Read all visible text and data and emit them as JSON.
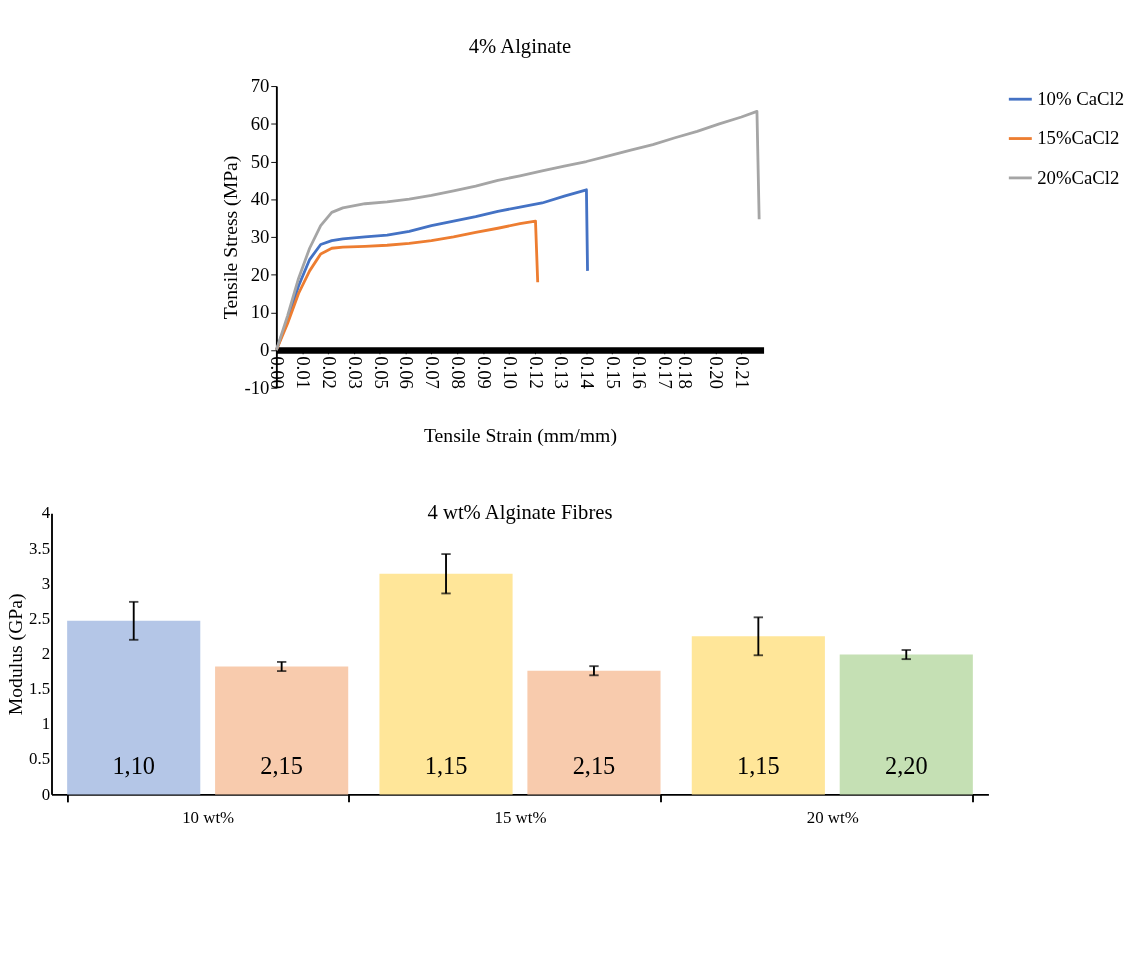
{
  "chart_data": [
    {
      "type": "line",
      "title": "4% Alginate",
      "xlabel": "Tensile Strain (mm/mm)",
      "ylabel": "Tensile Stress (MPa)",
      "legend": "right",
      "grid": false,
      "line_style": "solid",
      "marker": "none",
      "xlim": [
        0,
        0.22
      ],
      "ylim": [
        -10,
        70
      ],
      "yticks": [
        -10,
        0,
        10,
        20,
        30,
        40,
        50,
        60,
        70
      ],
      "xticks": [
        {
          "value": 0,
          "label": "0.00"
        },
        {
          "value": 0.01167,
          "label": "0.01"
        },
        {
          "value": 0.02333,
          "label": "0.02"
        },
        {
          "value": 0.035,
          "label": "0.03"
        },
        {
          "value": 0.04667,
          "label": "0.05"
        },
        {
          "value": 0.05833,
          "label": "0.06"
        },
        {
          "value": 0.07,
          "label": "0.07"
        },
        {
          "value": 0.08167,
          "label": "0.08"
        },
        {
          "value": 0.09333,
          "label": "0.09"
        },
        {
          "value": 0.105,
          "label": "0.10"
        },
        {
          "value": 0.11667,
          "label": "0.12"
        },
        {
          "value": 0.12833,
          "label": "0.13"
        },
        {
          "value": 0.14,
          "label": "0.14"
        },
        {
          "value": 0.15167,
          "label": "0.15"
        },
        {
          "value": 0.16333,
          "label": "0.16"
        },
        {
          "value": 0.175,
          "label": "0.17"
        },
        {
          "value": 0.184,
          "label": "0.18"
        },
        {
          "value": 0.19833,
          "label": "0.20"
        },
        {
          "value": 0.21,
          "label": "0.21"
        }
      ],
      "series": [
        {
          "name": "10% CaCl2",
          "color": "#4472c4",
          "x": [
            0,
            0.005,
            0.01,
            0.015,
            0.02,
            0.025,
            0.03,
            0.04,
            0.05,
            0.06,
            0.07,
            0.08,
            0.09,
            0.1,
            0.11,
            0.12,
            0.13,
            0.14,
            0.1405
          ],
          "values": [
            0,
            8,
            17,
            24,
            28,
            29,
            29.5,
            30,
            30.5,
            31.5,
            33,
            34.2,
            35.4,
            36.8,
            37.9,
            39,
            40.8,
            42.5,
            21
          ]
        },
        {
          "name": "15%CaCl2",
          "color": "#ed7d31",
          "x": [
            0,
            0.005,
            0.01,
            0.015,
            0.02,
            0.025,
            0.03,
            0.04,
            0.05,
            0.06,
            0.07,
            0.08,
            0.09,
            0.1,
            0.11,
            0.117,
            0.118
          ],
          "values": [
            0,
            7,
            15,
            21,
            25.5,
            27,
            27.3,
            27.5,
            27.8,
            28.3,
            29,
            30,
            31.2,
            32.3,
            33.5,
            34.2,
            18
          ]
        },
        {
          "name": "20%CaCl2",
          "color": "#a5a5a5",
          "x": [
            0,
            0.005,
            0.01,
            0.015,
            0.02,
            0.025,
            0.03,
            0.04,
            0.05,
            0.06,
            0.07,
            0.08,
            0.09,
            0.1,
            0.11,
            0.12,
            0.13,
            0.14,
            0.15,
            0.16,
            0.17,
            0.18,
            0.19,
            0.2,
            0.21,
            0.217,
            0.218
          ],
          "values": [
            0,
            9,
            19,
            27,
            33,
            36.5,
            37.7,
            38.8,
            39.3,
            40,
            41,
            42.2,
            43.5,
            45,
            46.2,
            47.5,
            48.8,
            50,
            51.5,
            53,
            54.5,
            56.3,
            58,
            60,
            61.8,
            63.3,
            34.7
          ]
        }
      ]
    },
    {
      "type": "bar",
      "title": "4 wt% Alginate Fibres",
      "ylabel": "Modulus (GPa)",
      "grid": false,
      "annotations": [
        "1,10",
        "2,15",
        "1,15",
        "2,15",
        "1,15",
        "2,20"
      ],
      "categories": [
        "10 wt%",
        "15 wt%",
        "20 wt%"
      ],
      "ylim": [
        0,
        4
      ],
      "yticks": [
        0,
        0.5,
        1,
        1.5,
        2,
        2.5,
        3,
        3.5,
        4
      ],
      "series": [
        {
          "colors": [
            "#b4c6e7",
            "#ffe699",
            "#ffe699"
          ],
          "values": [
            2.47,
            3.14,
            2.25
          ],
          "errors": [
            0.27,
            0.28,
            0.27
          ]
        },
        {
          "colors": [
            "#f8cbad",
            "#f8cbad",
            "#c5e0b4"
          ],
          "values": [
            1.82,
            1.76,
            1.99
          ],
          "errors": [
            0.065,
            0.065,
            0.065
          ]
        }
      ]
    }
  ]
}
